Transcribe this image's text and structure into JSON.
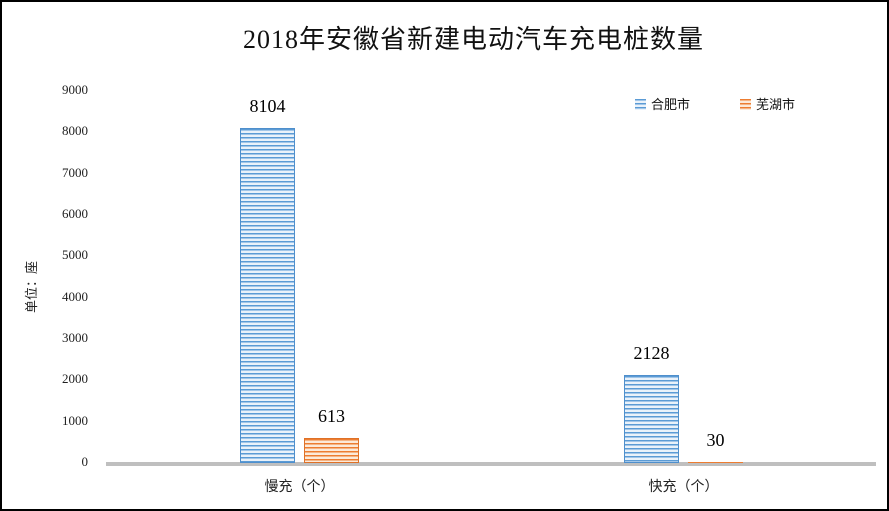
{
  "chart_data": {
    "type": "bar",
    "title": "2018年安徽省新建电动汽车充电桩数量",
    "unit_label": "单位：座",
    "categories": [
      "慢充（个）",
      "快充（个）"
    ],
    "series": [
      {
        "name": "合肥市",
        "values": [
          8104,
          2128
        ],
        "stripe_color": "#5b9bd5",
        "stripe_bg": "#eaf2fa",
        "border_color": "#4f8fcc"
      },
      {
        "name": "芜湖市",
        "values": [
          613,
          30
        ],
        "stripe_color": "#ed7d31",
        "stripe_bg": "#fcead9",
        "border_color": "#df7127"
      }
    ],
    "yticks": [
      0,
      1000,
      2000,
      3000,
      4000,
      5000,
      6000,
      7000,
      8000,
      9000
    ],
    "ylim": [
      0,
      9000
    ],
    "grid": false,
    "value_labels": true,
    "legend_position": "top-right",
    "baseline_color": "#bfbfbf",
    "background_color": "#ffffff",
    "frame_border_color": "#000000"
  }
}
